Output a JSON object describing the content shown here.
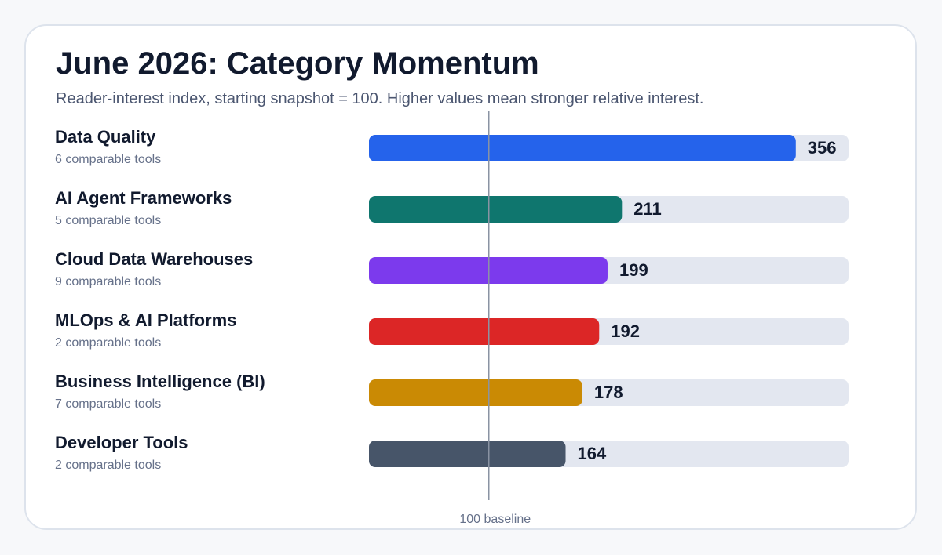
{
  "title": "June 2026: Category Momentum",
  "subtitle": "Reader-interest index, starting snapshot = 100. Higher values mean stronger relative interest.",
  "baseline_label": "100 baseline",
  "colors": {
    "track": "#e3e7f0",
    "baseline": "#8a93a3"
  },
  "chart_data": {
    "type": "bar",
    "orientation": "horizontal",
    "title": "June 2026: Category Momentum",
    "subtitle": "Reader-interest index, starting snapshot = 100. Higher values mean stronger relative interest.",
    "baseline": 100,
    "xlim": [
      0,
      400
    ],
    "categories": [
      "Data Quality",
      "AI Agent Frameworks",
      "Cloud Data Warehouses",
      "MLOps & AI Platforms",
      "Business Intelligence (BI)",
      "Developer Tools"
    ],
    "subtitles": [
      "6 comparable tools",
      "5 comparable tools",
      "9 comparable tools",
      "2 comparable tools",
      "7 comparable tools",
      "2 comparable tools"
    ],
    "values": [
      356,
      211,
      199,
      192,
      178,
      164
    ],
    "bar_colors": [
      "#2563eb",
      "#0f766e",
      "#7c3aed",
      "#dc2626",
      "#ca8a04",
      "#475569"
    ]
  }
}
